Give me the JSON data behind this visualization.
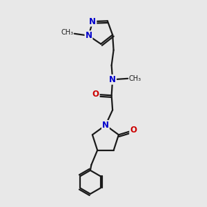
{
  "bg_color": "#e8e8e8",
  "bond_color": "#1a1a1a",
  "N_color": "#0000cc",
  "O_color": "#cc0000",
  "line_width": 1.6,
  "font_size": 8.5,
  "fig_size": [
    3.0,
    3.0
  ],
  "dpi": 100,
  "xlim": [
    0,
    10
  ],
  "ylim": [
    0,
    10
  ]
}
